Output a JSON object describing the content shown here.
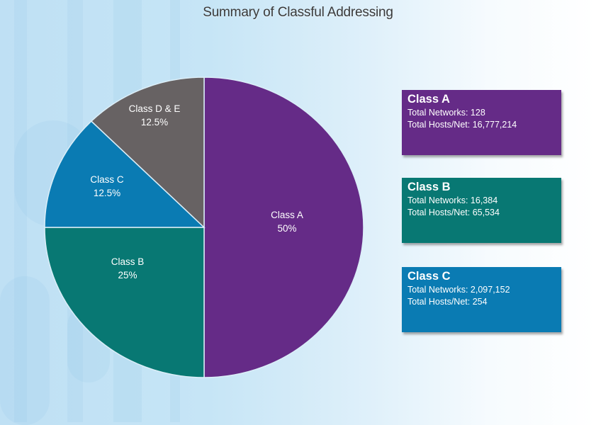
{
  "title": "Summary of Classful Addressing",
  "colors": {
    "class_a": "#652b87",
    "class_b": "#087873",
    "class_c": "#0a7bb3",
    "class_de": "#676263",
    "slice_border": "#dbeef8"
  },
  "chart_data": {
    "type": "pie",
    "title": "Summary of Classful Addressing",
    "categories": [
      "Class A",
      "Class B",
      "Class C",
      "Class D & E"
    ],
    "values": [
      50,
      25,
      12.5,
      12.5
    ],
    "unit": "%",
    "labels": [
      {
        "name": "Class A",
        "pct": "50%"
      },
      {
        "name": "Class B",
        "pct": "25%"
      },
      {
        "name": "Class C",
        "pct": "12.5%"
      },
      {
        "name": "Class D & E",
        "pct": "12.5%"
      }
    ],
    "legend": "none",
    "start_angle": "12 o'clock, clockwise"
  },
  "cards": [
    {
      "title": "Class A",
      "networks": "Total Networks: 128",
      "hosts": "Total Hosts/Net: 16,777,214"
    },
    {
      "title": "Class B",
      "networks": "Total Networks: 16,384",
      "hosts": "Total Hosts/Net: 65,534"
    },
    {
      "title": "Class C",
      "networks": "Total Networks: 2,097,152",
      "hosts": "Total Hosts/Net: 254"
    }
  ]
}
